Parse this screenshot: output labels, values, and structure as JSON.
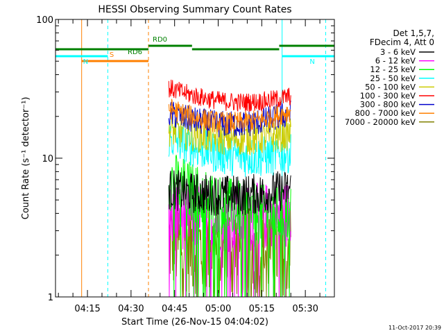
{
  "chart_data": {
    "type": "line",
    "title": "HESSI Observing Summary Count Rates",
    "xlabel": "Start Time (26-Nov-15 04:04:02)",
    "ylabel": "Count Rate (s⁻¹ detector⁻¹)",
    "y_scale": "log",
    "ylim": [
      1,
      100
    ],
    "xlim": [
      "04:04",
      "05:40"
    ],
    "x_ticks": [
      "04:15",
      "04:30",
      "04:45",
      "05:00",
      "05:15",
      "05:30"
    ],
    "y_ticks": [
      "1",
      "10",
      "100"
    ],
    "legend_placement": "right",
    "legend_header": [
      "Det 1,5,7,",
      "FDecim 4, Att 0"
    ],
    "data_start": "04:43",
    "data_end": "05:25",
    "series": [
      {
        "name": "3 - 6 keV",
        "color": "#000000",
        "level_start": 6.0,
        "level_mid": 4.8,
        "level_end": 6.0,
        "noise": 0.15
      },
      {
        "name": "6 - 12 keV",
        "color": "#ff00ff",
        "level_start": 4.0,
        "level_mid": 3.4,
        "level_end": 4.0,
        "noise": 0.25
      },
      {
        "name": "12 - 25 keV",
        "color": "#00ff00",
        "level_start": 7.0,
        "level_mid": 3.3,
        "level_end": 4.0,
        "noise": 0.22
      },
      {
        "name": "25 - 50 keV",
        "color": "#00ffff",
        "level_start": 14.0,
        "level_mid": 8.5,
        "level_end": 11.0,
        "noise": 0.15
      },
      {
        "name": "50 - 100 keV",
        "color": "#cccc00",
        "level_start": 16.0,
        "level_mid": 12.0,
        "level_end": 15.0,
        "noise": 0.12
      },
      {
        "name": "100 - 300 keV",
        "color": "#ff0000",
        "level_start": 32.0,
        "level_mid": 21.0,
        "level_end": 28.0,
        "noise": 0.07
      },
      {
        "name": "300 - 800 keV",
        "color": "#0000cc",
        "level_start": 21.0,
        "level_mid": 14.0,
        "level_end": 21.0,
        "noise": 0.1
      },
      {
        "name": "800 - 7000 keV",
        "color": "#ff8000",
        "level_start": 23.0,
        "level_mid": 13.5,
        "level_end": 22.0,
        "noise": 0.08
      },
      {
        "name": "7000 - 20000 keV",
        "color": "#808000",
        "level_start": 2.5,
        "level_mid": 2.0,
        "level_end": 2.3,
        "noise": 0.35
      }
    ],
    "flags": [
      {
        "label": "S",
        "color": "#ff8000",
        "start": "04:13",
        "end": "04:36",
        "y": 88
      },
      {
        "label": "N",
        "color": "#00ffff",
        "start": "04:04",
        "end": "04:22",
        "y": 81
      },
      {
        "label": "N",
        "color": "#00ffff",
        "start": "05:22",
        "end": "05:40",
        "y": 81
      },
      {
        "label": "RD6",
        "color": "#008000",
        "start": "04:04",
        "end": "04:36",
        "y": 71
      },
      {
        "label": "RD0",
        "color": "#008000",
        "start": "04:36",
        "end": "04:51",
        "y": 66
      },
      {
        "label": "",
        "color": "#008000",
        "start": "04:51",
        "end": "05:21",
        "y": 71
      },
      {
        "label": "",
        "color": "#008000",
        "start": "05:21",
        "end": "05:40",
        "y": 66
      }
    ],
    "vlines": [
      {
        "t": "04:04",
        "color": "#00ffff",
        "style": "solid"
      },
      {
        "t": "04:13",
        "color": "#ff8000",
        "style": "solid"
      },
      {
        "t": "04:22",
        "color": "#00ffff",
        "style": "dashed"
      },
      {
        "t": "04:36",
        "color": "#ff8000",
        "style": "dashed"
      },
      {
        "t": "05:22",
        "color": "#00ffff",
        "style": "solid"
      },
      {
        "t": "05:37",
        "color": "#00ffff",
        "style": "dashed"
      }
    ]
  },
  "footer_timestamp": "11-Oct-2017 20:39"
}
